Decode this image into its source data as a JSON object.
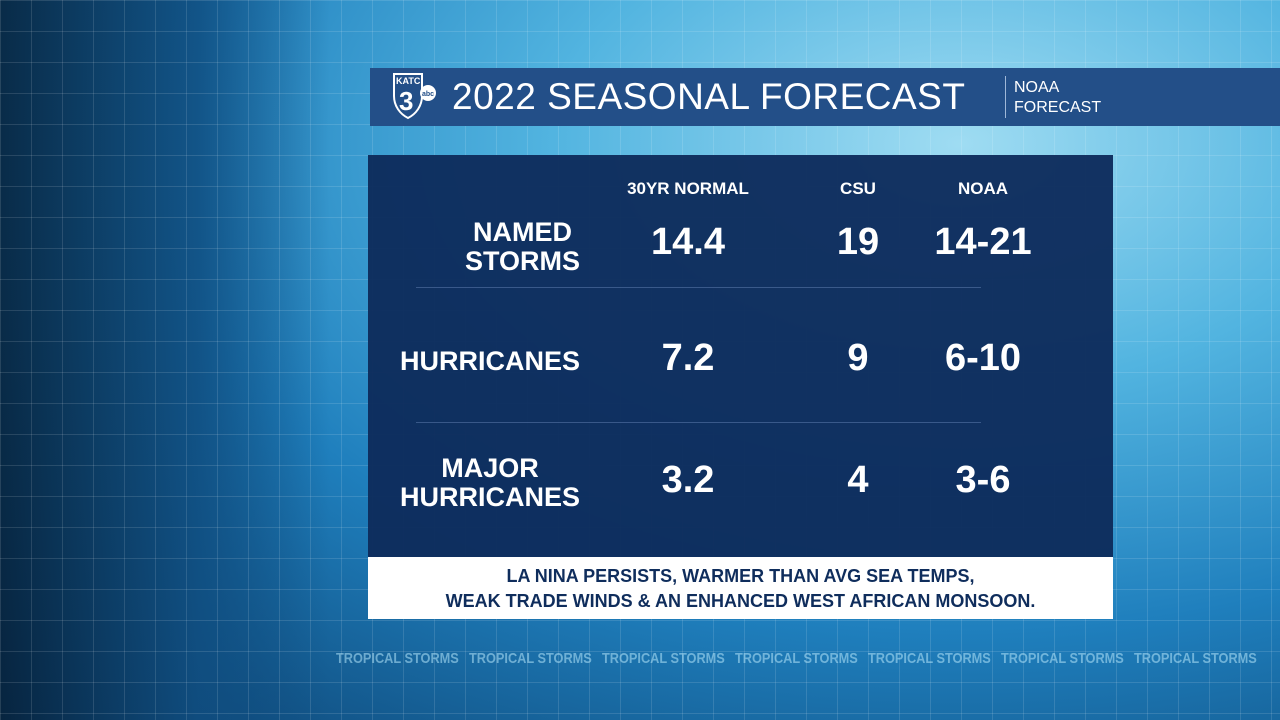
{
  "background": {
    "ticker_text": "TROPICAL STORMS",
    "ticker_repeat": 7
  },
  "header": {
    "logo_text": "KATC 3 abc",
    "title": "2022 SEASONAL FORECAST",
    "subtitle_line1": "NOAA",
    "subtitle_line2": "FORECAST"
  },
  "table": {
    "columns": [
      "30YR NORMAL",
      "CSU",
      "NOAA"
    ],
    "rows": [
      {
        "label_line1": "NAMED",
        "label_line2": "STORMS",
        "values": [
          "14.4",
          "19",
          "14-21"
        ]
      },
      {
        "label_line1": "HURRICANES",
        "label_line2": "",
        "values": [
          "7.2",
          "9",
          "6-10"
        ]
      },
      {
        "label_line1": "MAJOR",
        "label_line2": "HURRICANES",
        "values": [
          "3.2",
          "4",
          "3-6"
        ]
      }
    ]
  },
  "note": {
    "line1": "LA NINA PERSISTS, WARMER THAN AVG SEA TEMPS,",
    "line2": "WEAK TRADE WINDS & AN ENHANCED WEST AFRICAN MONSOON."
  },
  "colors": {
    "header": "#234f88",
    "panel": "#0e2c5c",
    "note_text": "#0f2d5c"
  }
}
